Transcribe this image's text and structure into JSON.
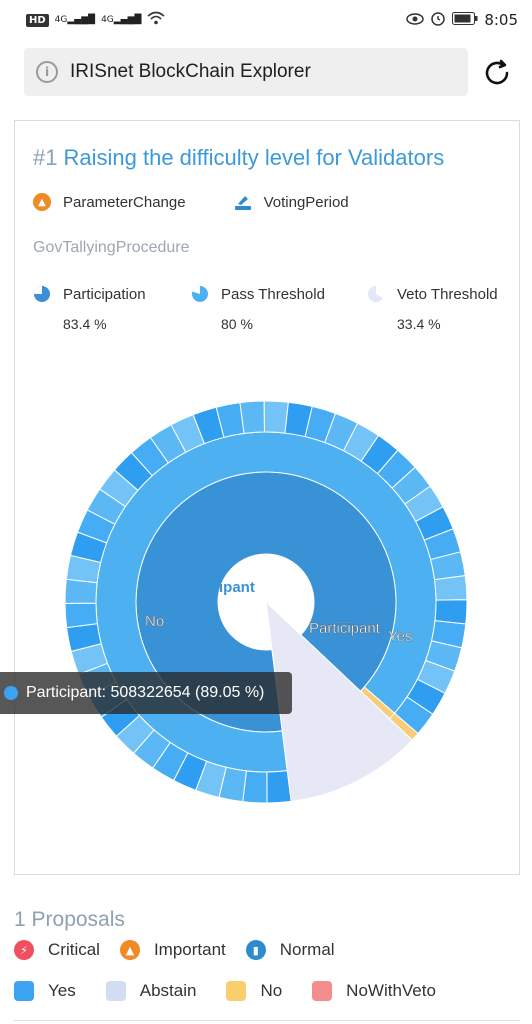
{
  "status_bar": {
    "hd": "HD",
    "signal_1": "4G",
    "signal_2": "4G",
    "time": "8:05"
  },
  "url_bar": {
    "text": "IRISnet BlockChain Explorer"
  },
  "proposal": {
    "number": "#1",
    "title": "Raising the difficulty level for Validators",
    "type": "ParameterChange",
    "status": "VotingPeriod",
    "procedure": "GovTallyingProcedure",
    "stats": [
      {
        "label": "Participation",
        "value": "83.4 %",
        "color": "#3a8fd8"
      },
      {
        "label": "Pass Threshold",
        "value": "80 %",
        "color": "#4db0f0"
      },
      {
        "label": "Veto Threshold",
        "value": "33.4 %",
        "color": "#dfe4f5"
      }
    ]
  },
  "chart_data": {
    "type": "sunburst",
    "center_labels": [
      "Nonparticipant",
      "Participant"
    ],
    "ring_labels": [
      "No",
      "Yes"
    ],
    "inner": [
      {
        "name": "Participant",
        "fraction": 0.8905,
        "color": "#3a92d6"
      },
      {
        "name": "Nonparticipant",
        "fraction": 0.1095,
        "color": "#ffffff"
      }
    ],
    "middle": [
      {
        "name": "Yes",
        "fraction": 0.8835,
        "color": "#4db0f0"
      },
      {
        "name": "No",
        "fraction": 0.007,
        "color": "#f7cd78"
      },
      {
        "name": "Nonparticipant",
        "fraction": 0.1095,
        "color": "#e6e8f6"
      }
    ],
    "tooltip": {
      "label": "Participant",
      "value": 508322654,
      "percent": "89.05 %"
    }
  },
  "tooltip_text": "Participant: 508322654 (89.05 %)",
  "footer": {
    "count": "1 Proposals",
    "kinds": [
      {
        "label": "Critical",
        "color": "#ef4f5e",
        "icon": "lightning-icon"
      },
      {
        "label": "Important",
        "color": "#f08a24",
        "icon": "alert-icon"
      },
      {
        "label": "Normal",
        "color": "#2f8bd0",
        "icon": "bookmark-icon"
      }
    ],
    "votes": [
      {
        "label": "Yes",
        "color": "#3ba3f0"
      },
      {
        "label": "Abstain",
        "color": "#d2dcf5"
      },
      {
        "label": "No",
        "color": "#f8cf6e"
      },
      {
        "label": "NoWithVeto",
        "color": "#f48d8d"
      }
    ]
  }
}
